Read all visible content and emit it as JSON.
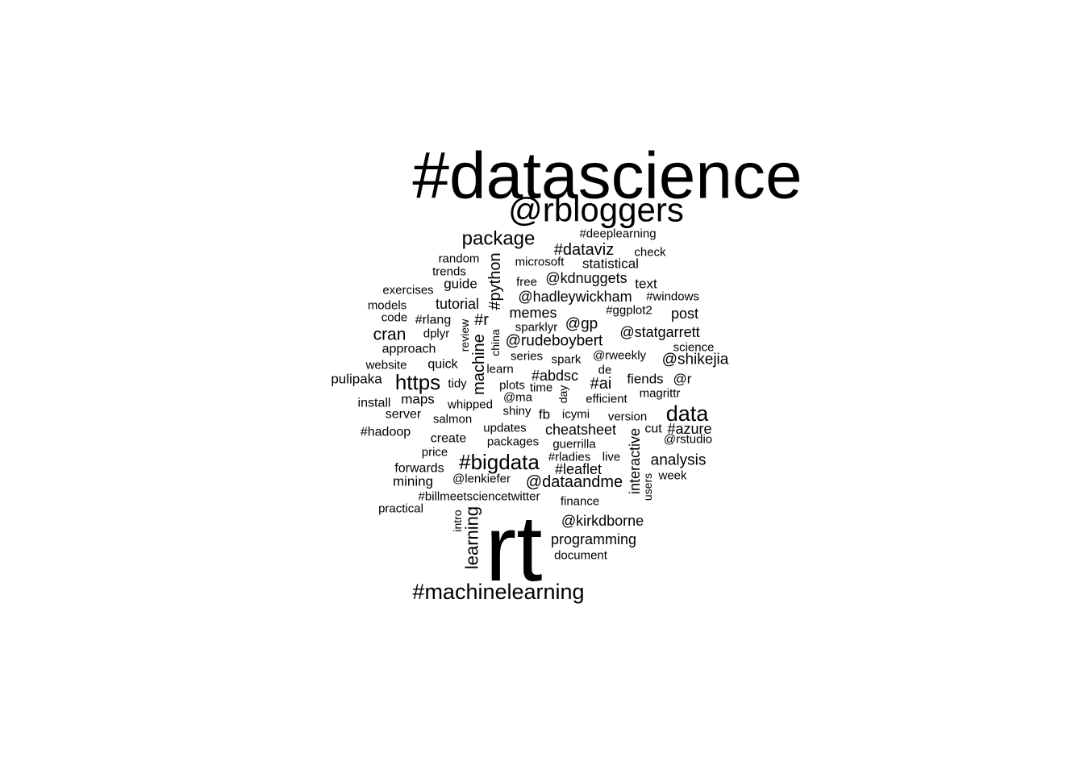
{
  "word_cloud": {
    "text_color": "#000000",
    "background_color": "#ffffff",
    "words": [
      {
        "text": "#datascience"
      },
      {
        "text": "@rbloggers"
      },
      {
        "text": "rt"
      },
      {
        "text": "#machinelearning"
      },
      {
        "text": "#bigdata"
      },
      {
        "text": "data"
      },
      {
        "text": "https"
      },
      {
        "text": "package"
      },
      {
        "text": "learning"
      },
      {
        "text": "machine"
      },
      {
        "text": "cran"
      },
      {
        "text": "#python"
      },
      {
        "text": "#dataviz"
      },
      {
        "text": "@dataandme"
      },
      {
        "text": "@kirkdborne"
      },
      {
        "text": "@rudeboybert"
      },
      {
        "text": "@statgarrett"
      },
      {
        "text": "@shikejia"
      },
      {
        "text": "@hadleywickham"
      },
      {
        "text": "@kdnuggets"
      },
      {
        "text": "#ai"
      },
      {
        "text": "#abdsc"
      },
      {
        "text": "#leaflet"
      },
      {
        "text": "#azure"
      },
      {
        "text": "analysis"
      },
      {
        "text": "interactive"
      },
      {
        "text": "@gp"
      },
      {
        "text": "#r"
      },
      {
        "text": "cheatsheet"
      },
      {
        "text": "programming"
      },
      {
        "text": "tutorial"
      },
      {
        "text": "memes"
      },
      {
        "text": "statistical"
      },
      {
        "text": "text"
      },
      {
        "text": "post"
      },
      {
        "text": "fiends"
      },
      {
        "text": "@r"
      },
      {
        "text": "maps"
      },
      {
        "text": "mining"
      },
      {
        "text": "pulipaka"
      },
      {
        "text": "approach"
      },
      {
        "text": "guide"
      },
      {
        "text": "#deeplearning"
      },
      {
        "text": "check"
      },
      {
        "text": "microsoft"
      },
      {
        "text": "random"
      },
      {
        "text": "trends"
      },
      {
        "text": "exercises"
      },
      {
        "text": "free"
      },
      {
        "text": "#windows"
      },
      {
        "text": "models"
      },
      {
        "text": "code"
      },
      {
        "text": "#rlang"
      },
      {
        "text": "#ggplot2"
      },
      {
        "text": "dplyr"
      },
      {
        "text": "review"
      },
      {
        "text": "china"
      },
      {
        "text": "sparklyr"
      },
      {
        "text": "science"
      },
      {
        "text": "series"
      },
      {
        "text": "spark"
      },
      {
        "text": "@rweekly"
      },
      {
        "text": "website"
      },
      {
        "text": "quick"
      },
      {
        "text": "learn"
      },
      {
        "text": "de"
      },
      {
        "text": "tidy"
      },
      {
        "text": "plots"
      },
      {
        "text": "time"
      },
      {
        "text": "day"
      },
      {
        "text": "magrittr"
      },
      {
        "text": "install"
      },
      {
        "text": "whipped"
      },
      {
        "text": "@ma"
      },
      {
        "text": "efficient"
      },
      {
        "text": "server"
      },
      {
        "text": "salmon"
      },
      {
        "text": "shiny"
      },
      {
        "text": "fb"
      },
      {
        "text": "icymi"
      },
      {
        "text": "version"
      },
      {
        "text": "#hadoop"
      },
      {
        "text": "updates"
      },
      {
        "text": "cut"
      },
      {
        "text": "create"
      },
      {
        "text": "packages"
      },
      {
        "text": "guerrilla"
      },
      {
        "text": "@rstudio"
      },
      {
        "text": "price"
      },
      {
        "text": "#rladies"
      },
      {
        "text": "live"
      },
      {
        "text": "forwards"
      },
      {
        "text": "@lenkiefer"
      },
      {
        "text": "week"
      },
      {
        "text": "users"
      },
      {
        "text": "#billmeetsciencetwitter"
      },
      {
        "text": "practical"
      },
      {
        "text": "finance"
      },
      {
        "text": "intro"
      },
      {
        "text": "document"
      }
    ]
  }
}
